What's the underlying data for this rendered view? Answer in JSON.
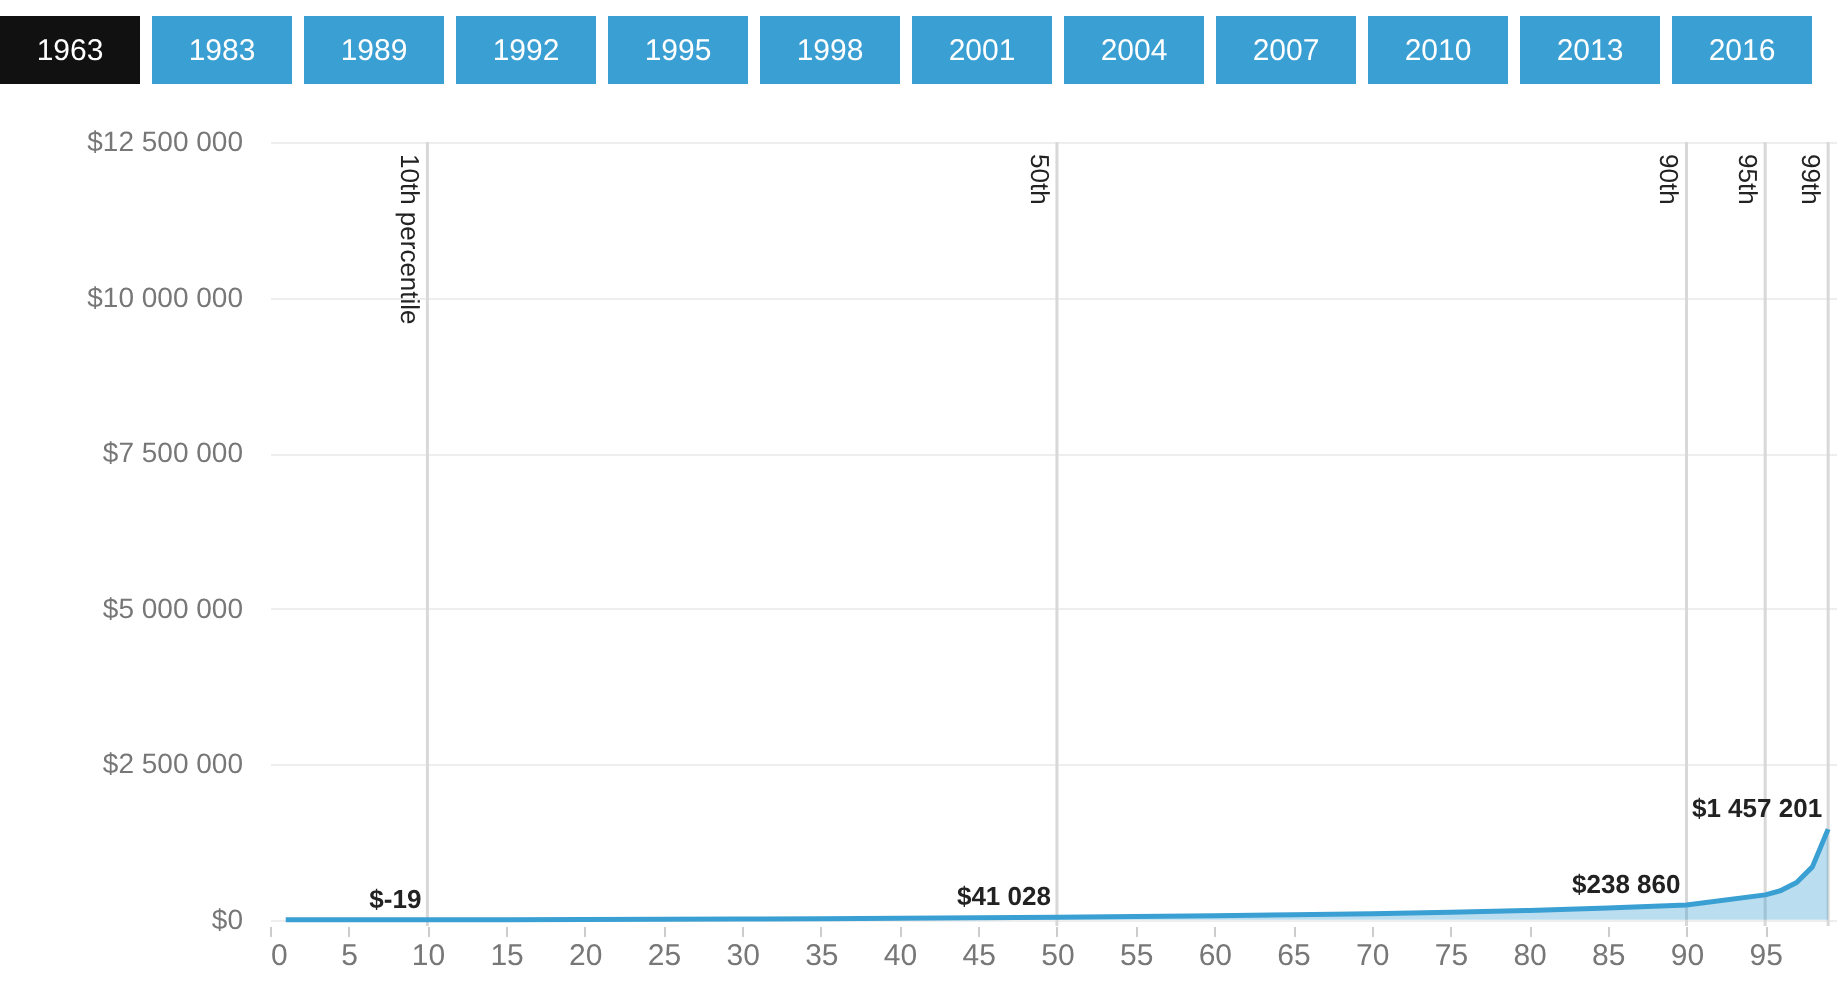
{
  "chart_data": {
    "type": "area",
    "annotations": [
      "1963",
      "1983",
      "1989",
      "1992",
      "1995",
      "1998",
      "2001",
      "2004",
      "2007",
      "2010",
      "2013",
      "2016"
    ],
    "x": [
      1,
      5,
      10,
      15,
      20,
      25,
      30,
      35,
      40,
      45,
      50,
      55,
      60,
      65,
      70,
      75,
      80,
      85,
      90,
      95,
      96,
      97,
      98,
      99
    ],
    "series": [
      {
        "color": "#3a9fd2",
        "values": [
          0,
          0,
          -19,
          1000,
          3500,
          7000,
          11000,
          16000,
          23000,
          31000,
          41028,
          52000,
          65000,
          80000,
          98000,
          120000,
          150000,
          188000,
          238860,
          400000,
          470000,
          600000,
          850000,
          1457201
        ],
        "value_labels": [
          null,
          null,
          "$-19",
          null,
          null,
          null,
          null,
          null,
          null,
          null,
          "$41 028",
          null,
          null,
          null,
          null,
          null,
          null,
          null,
          "$238 860",
          null,
          null,
          null,
          null,
          "$1 457 201"
        ]
      }
    ],
    "xlim": [
      0,
      99.5
    ],
    "xticks": [
      0,
      5,
      10,
      15,
      20,
      25,
      30,
      35,
      40,
      45,
      50,
      55,
      60,
      65,
      70,
      75,
      80,
      85,
      90,
      95
    ],
    "ylim": [
      -100000,
      12500000
    ],
    "yticks": [
      {
        "value": 0,
        "label": "$0"
      },
      {
        "value": 2500000,
        "label": "$2 500 000"
      },
      {
        "value": 5000000,
        "label": "$5 000 000"
      },
      {
        "value": 7500000,
        "label": "$7 500 000"
      },
      {
        "value": 10000000,
        "label": "$10 000 000"
      },
      {
        "value": 12500000,
        "label": "$12 500 000"
      }
    ],
    "grid": "y",
    "ref_lines": [
      {
        "axis": "x",
        "value": 10,
        "label": "10th percentile"
      },
      {
        "axis": "x",
        "value": 50,
        "label": "50th"
      },
      {
        "axis": "x",
        "value": 90,
        "label": "90th"
      },
      {
        "axis": "x",
        "value": 95,
        "label": "95th"
      },
      {
        "axis": "x",
        "value": 99,
        "label": "99th"
      }
    ]
  }
}
